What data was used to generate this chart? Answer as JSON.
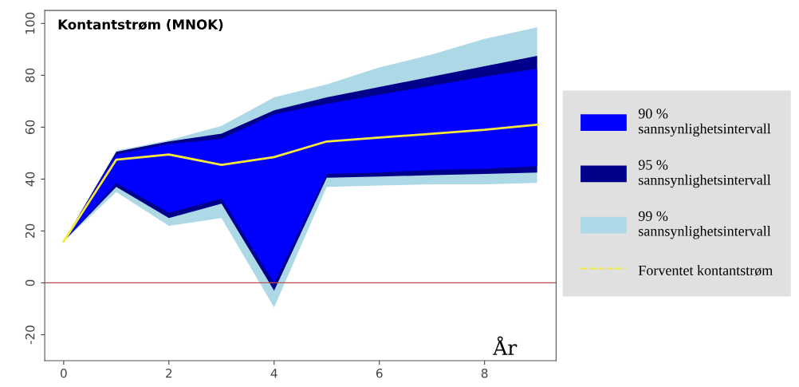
{
  "chart_data": {
    "type": "line",
    "title": "Kontantstrøm (MNOK)",
    "xlabel": "År",
    "x": [
      0,
      1,
      2,
      3,
      4,
      5,
      6,
      7,
      8,
      9
    ],
    "series": [
      {
        "name": "99 %\nsannsynlighetsintervall",
        "color": "#add8e6",
        "values": [
          null,
          null,
          null,
          null,
          null,
          null,
          null,
          null,
          null,
          null
        ],
        "lower": [
          16,
          35,
          22,
          25,
          -9.5,
          37,
          37.5,
          38,
          38,
          38.5
        ],
        "upper": [
          16,
          51,
          55,
          60.5,
          71.5,
          76.5,
          83,
          88,
          94,
          98.5
        ]
      },
      {
        "name": "95 %\nsannsynlighetsintervall",
        "color": "#00008b",
        "values": [
          null,
          null,
          null,
          null,
          null,
          null,
          null,
          null,
          null,
          null
        ],
        "lower": [
          16,
          37,
          25,
          30.5,
          -3,
          40.5,
          41,
          41.5,
          42,
          42.5
        ],
        "upper": [
          16,
          50.5,
          54.5,
          57.5,
          66.5,
          71.5,
          75.5,
          79.5,
          83.5,
          87.5
        ]
      },
      {
        "name": "90 %\nsannsynlighetsintervall",
        "color": "#0000ff",
        "values": [
          null,
          null,
          null,
          null,
          null,
          null,
          null,
          null,
          null,
          null
        ],
        "lower": [
          16,
          38.5,
          27,
          32.5,
          0,
          42,
          42.5,
          43.5,
          44,
          45
        ],
        "upper": [
          16,
          49.5,
          53.5,
          55.5,
          65,
          69,
          72.5,
          76,
          79.5,
          82.5
        ]
      },
      {
        "name": "Forventet kontantstrøm",
        "color": "#f5e83a",
        "values": [
          16,
          47.5,
          49.5,
          45.5,
          48.5,
          54.5,
          56,
          57.5,
          59,
          61
        ]
      }
    ],
    "xlim": [
      -0.36,
      9.36
    ],
    "ylim": [
      -30,
      105
    ],
    "xticks": [
      0,
      2,
      4,
      6,
      8
    ],
    "yticks": [
      -20,
      0,
      20,
      40,
      60,
      80,
      100
    ],
    "ref_lines": [
      {
        "axis": "y",
        "value": 0,
        "color": "#c0504d"
      }
    ],
    "legend": "right",
    "grid": false
  }
}
